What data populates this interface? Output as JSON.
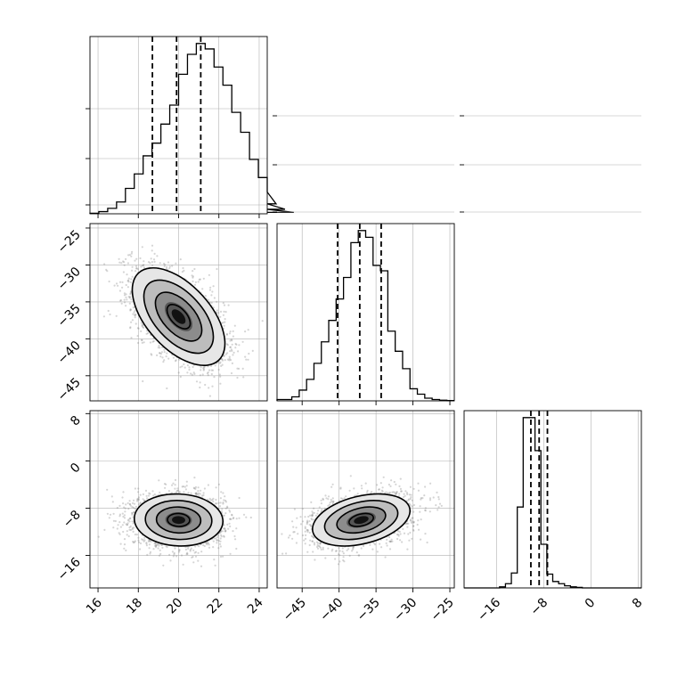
{
  "chart_data": {
    "type": "corner",
    "parameters": [
      {
        "name": "",
        "range": [
          15.6,
          24.4
        ],
        "ticks": [
          "16",
          "18",
          "20",
          "22",
          "24"
        ],
        "tick_values": [
          16,
          18,
          20,
          22,
          24
        ],
        "quantiles": [
          18.7,
          19.9,
          21.1
        ]
      },
      {
        "name": "",
        "range": [
          -48.4,
          -24.4
        ],
        "ticks": [
          "-45",
          "-40",
          "-35",
          "-30",
          "-25"
        ],
        "tick_values": [
          -45,
          -40,
          -35,
          -30,
          -25
        ],
        "quantiles": [
          -40.2,
          -37.2,
          -34.3
        ]
      },
      {
        "name": "",
        "range": [
          -21.5,
          8.5
        ],
        "ticks": [
          "-16",
          "-8",
          "0",
          "8"
        ],
        "tick_values": [
          -16,
          -8,
          0,
          8
        ],
        "quantiles": [
          -10.2,
          -8.8,
          -7.4
        ]
      }
    ],
    "histograms": [
      {
        "param": 0,
        "bin_start": 15.6,
        "bin_width": 0.44,
        "counts": [
          0.3,
          1.2,
          3.0,
          6.5,
          14.0,
          22.0,
          32.0,
          39.0,
          49.5,
          60.0,
          77.0,
          88.0,
          94.0,
          91.0,
          81.0,
          71.0,
          56.0,
          45.0,
          30.0,
          20.0,
          12.0,
          5.5,
          2.5,
          0.8
        ]
      },
      {
        "param": 1,
        "bin_start": -48.4,
        "bin_width": 1.0,
        "counts": [
          1,
          1,
          3,
          8,
          16,
          28,
          44,
          60,
          76,
          92,
          118,
          127,
          122,
          101,
          97,
          52,
          37,
          24,
          9,
          5,
          2,
          1,
          0.5,
          0.2
        ]
      },
      {
        "param": 2,
        "bin_start": -21.5,
        "bin_width": 1.0,
        "counts": [
          0,
          0,
          0,
          0,
          0,
          0,
          1,
          4,
          14,
          76,
          160,
          160,
          129,
          41,
          13,
          6,
          4,
          2,
          1,
          0.5,
          0,
          0,
          0,
          0,
          0,
          0,
          0,
          0,
          0,
          0
        ]
      }
    ],
    "joint_2d": [
      {
        "x_param": 0,
        "y_param": 1,
        "mean": [
          20.0,
          -37.0
        ],
        "sd": [
          1.15,
          3.3
        ],
        "rho": -0.55
      },
      {
        "x_param": 0,
        "y_param": 2,
        "mean": [
          20.0,
          -10.0
        ],
        "sd": [
          1.1,
          2.2
        ],
        "rho": -0.05
      },
      {
        "x_param": 1,
        "y_param": 2,
        "mean": [
          -37.0,
          -10.0
        ],
        "sd": [
          3.3,
          2.2
        ],
        "rho": 0.35
      }
    ],
    "contour_levels_sigma": [
      0.5,
      1.0,
      1.5,
      2.0
    ],
    "grid": true,
    "colors": {
      "line": "#000000",
      "grid": "#b0b0b0",
      "points": "#888888"
    }
  }
}
